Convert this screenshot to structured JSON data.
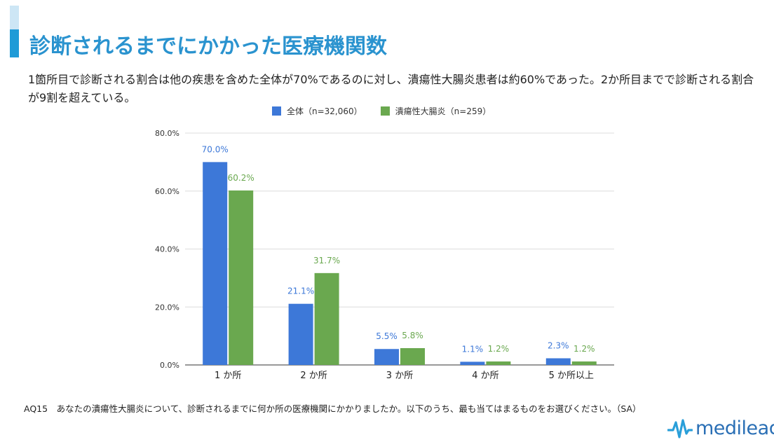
{
  "page": {
    "title": "診断されるまでにかかった医療機関数",
    "subtitle": "1箇所目で診断される割合は他の疾患を含めた全体が70%であるのに対し、潰瘍性大腸炎患者は約60%であった。2か所目までで診断される割合が9割を超えている。",
    "footnote": "AQ15　あなたの潰瘍性大腸炎について、診断されるまでに何か所の医療機関にかかりましたか。以下のうち、最も当てはまるものをお選びください。（SA）",
    "logo_text": "medilead"
  },
  "chart_data": {
    "type": "bar",
    "title": "",
    "xlabel": "",
    "ylabel": "",
    "categories": [
      "1 か所",
      "2 か所",
      "3 か所",
      "4 か所",
      "5 か所以上"
    ],
    "series": [
      {
        "name": "全体（n=32,060）",
        "color": "#3d78d8",
        "values": [
          70.0,
          21.1,
          5.5,
          1.1,
          2.3
        ],
        "labels": [
          "70.0%",
          "21.1%",
          "5.5%",
          "1.1%",
          "2.3%"
        ]
      },
      {
        "name": "潰瘍性大腸炎（n=259）",
        "color": "#6aa84f",
        "values": [
          60.2,
          31.7,
          5.8,
          1.2,
          1.2
        ],
        "labels": [
          "60.2%",
          "31.7%",
          "5.8%",
          "1.2%",
          "1.2%"
        ]
      }
    ],
    "ylim": [
      0,
      80
    ],
    "yticks": [
      0,
      20,
      40,
      60,
      80
    ],
    "ytick_labels": [
      "0.0%",
      "20.0%",
      "40.0%",
      "60.0%",
      "80.0%"
    ],
    "grid": true,
    "legend_position": "top"
  }
}
